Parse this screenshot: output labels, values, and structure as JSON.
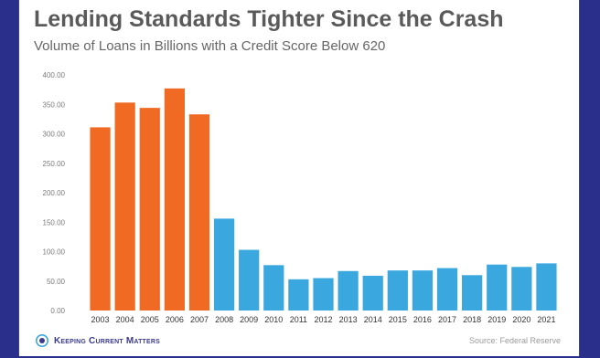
{
  "footer": {
    "brand": "Keeping Current Matters",
    "source": "Source: Federal Reserve"
  },
  "colors": {
    "background": "#2a2f8c",
    "pre_crash_bar": "#f06a23",
    "post_crash_bar": "#3aa8df",
    "brand_blue": "#3b3b8f"
  },
  "icons": {
    "brand_logo": "kcm-logo-icon"
  },
  "chart_data": {
    "type": "bar",
    "title": "Lending Standards Tighter Since the Crash",
    "subtitle": "Volume of Loans in Billions with a Credit Score Below 620",
    "xlabel": "",
    "ylabel": "",
    "ylim": [
      0,
      400
    ],
    "yticks": [
      "0.00",
      "50.00",
      "100.00",
      "150.00",
      "200.00",
      "250.00",
      "300.00",
      "350.00",
      "400.00"
    ],
    "grid": false,
    "legend": "none",
    "categories": [
      "2003",
      "2004",
      "2005",
      "2006",
      "2007",
      "2008",
      "2009",
      "2010",
      "2011",
      "2012",
      "2013",
      "2014",
      "2015",
      "2016",
      "2017",
      "2018",
      "2019",
      "2020",
      "2021"
    ],
    "values": [
      311,
      353,
      344,
      377,
      333,
      156,
      103,
      77,
      53,
      55,
      67,
      59,
      68,
      68,
      72,
      60,
      78,
      74,
      80
    ],
    "bar_colors": [
      "#f06a23",
      "#f06a23",
      "#f06a23",
      "#f06a23",
      "#f06a23",
      "#3aa8df",
      "#3aa8df",
      "#3aa8df",
      "#3aa8df",
      "#3aa8df",
      "#3aa8df",
      "#3aa8df",
      "#3aa8df",
      "#3aa8df",
      "#3aa8df",
      "#3aa8df",
      "#3aa8df",
      "#3aa8df",
      "#3aa8df"
    ]
  }
}
